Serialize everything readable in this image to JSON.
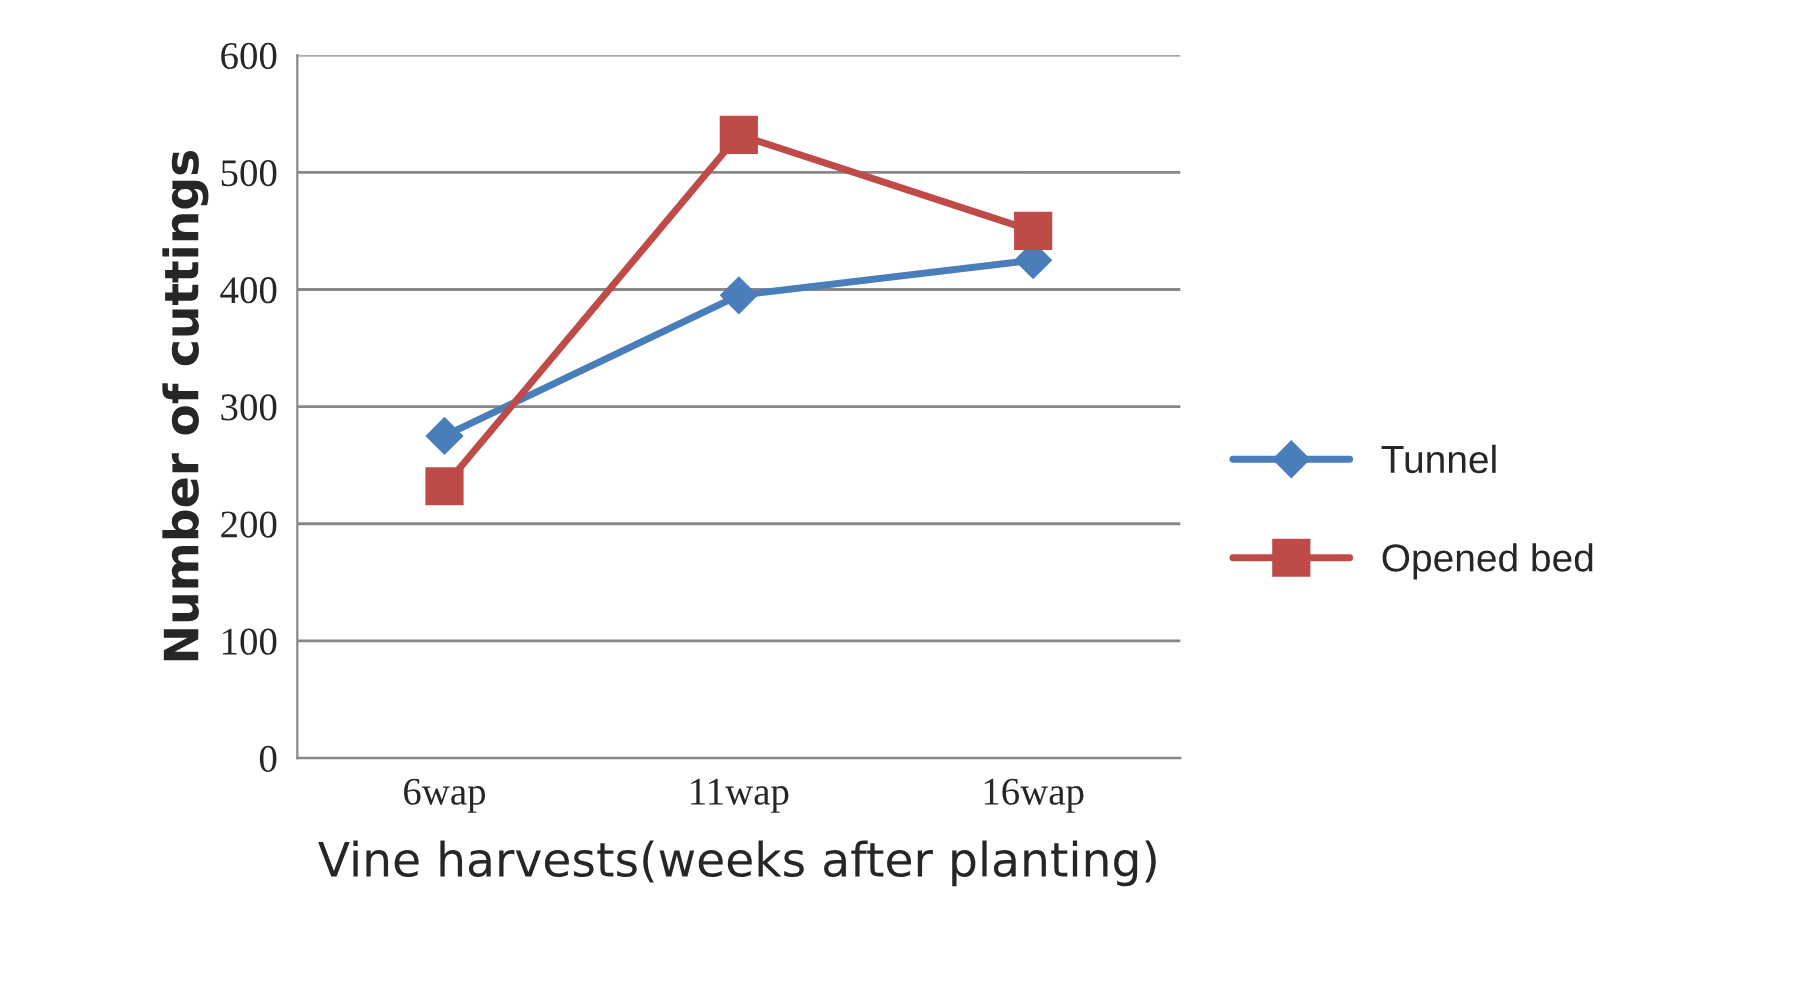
{
  "chart_data": {
    "type": "line",
    "xlabel": "Vine harvests(weeks after planting)",
    "ylabel": "Number of cuttings",
    "categories": [
      "6wap",
      "11wap",
      "16wap"
    ],
    "series": [
      {
        "name": "Tunnel",
        "color": "#4a7ebb",
        "marker": "diamond",
        "values": [
          275,
          395,
          425
        ]
      },
      {
        "name": "Opened bed",
        "color": "#be4b48",
        "marker": "square",
        "values": [
          232,
          532,
          450
        ]
      }
    ],
    "ylim": [
      0,
      600
    ],
    "yticks": [
      0,
      100,
      200,
      300,
      400,
      500,
      600
    ],
    "grid": "y",
    "legend": "right"
  }
}
